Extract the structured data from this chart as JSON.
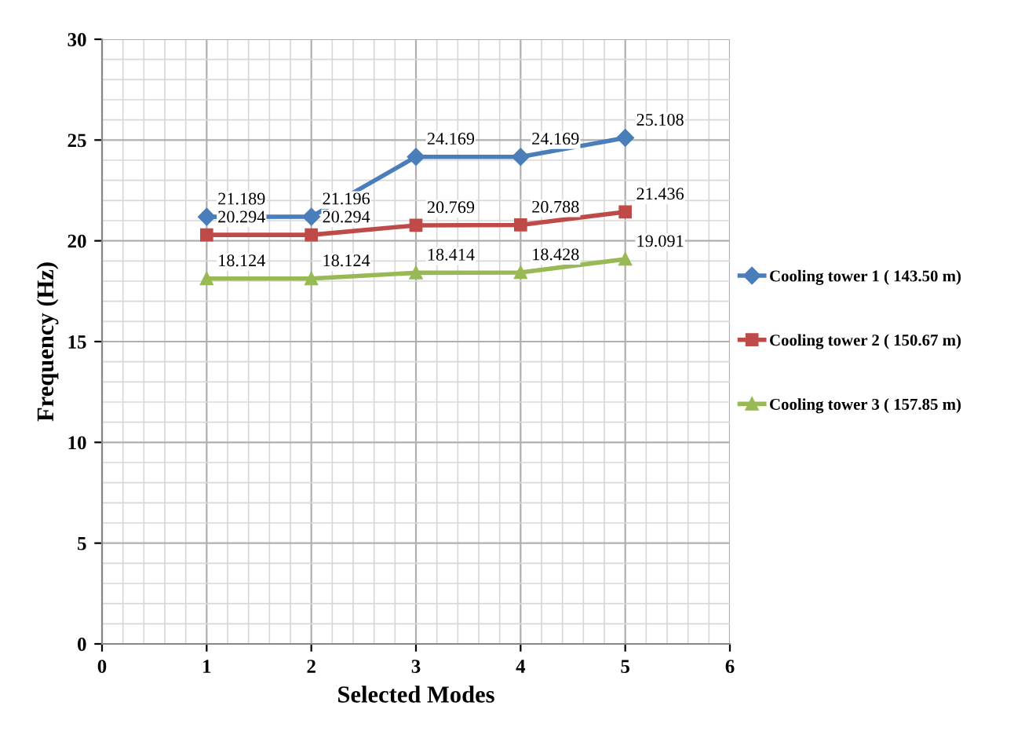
{
  "chart_data": {
    "type": "line",
    "xlabel": "Selected Modes",
    "ylabel": "Frequency (Hz)",
    "x": [
      1,
      2,
      3,
      4,
      5
    ],
    "series": [
      {
        "name": "Cooling tower 1 ( 143.50 m)",
        "color": "#4a7ebb",
        "marker": "diamond",
        "values": [
          21.189,
          21.196,
          24.169,
          24.169,
          25.108
        ]
      },
      {
        "name": "Cooling tower 2 ( 150.67 m)",
        "color": "#be4b48",
        "marker": "square",
        "values": [
          20.294,
          20.294,
          20.769,
          20.788,
          21.436
        ]
      },
      {
        "name": "Cooling tower 3 ( 157.85 m)",
        "color": "#98b954",
        "marker": "triangle",
        "values": [
          18.124,
          18.124,
          18.414,
          18.428,
          19.091
        ]
      }
    ],
    "xlim": [
      0,
      6
    ],
    "xticks": [
      0,
      1,
      2,
      3,
      4,
      5,
      6
    ],
    "ylim": [
      0,
      30
    ],
    "yticks": [
      0,
      5,
      10,
      15,
      20,
      25,
      30
    ],
    "grid": true,
    "legend": "right",
    "data_labels": true,
    "line_style": "solid"
  }
}
